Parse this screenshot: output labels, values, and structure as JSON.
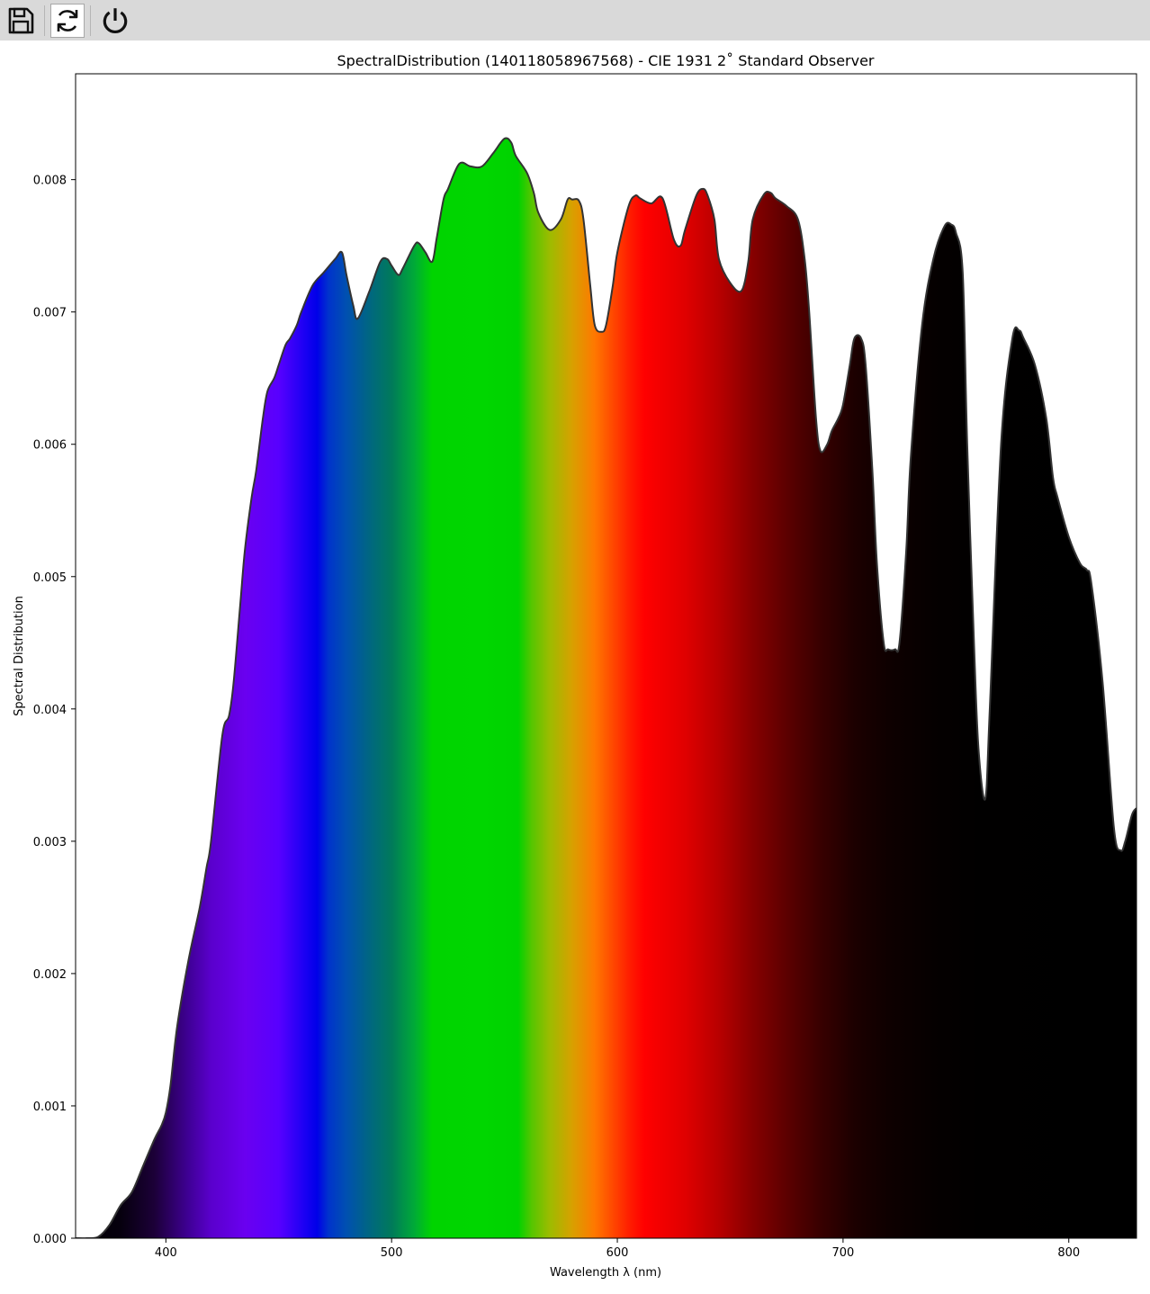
{
  "toolbar": {
    "buttons": [
      {
        "name": "save",
        "icon": "save-icon",
        "active": false
      },
      {
        "name": "refresh",
        "icon": "refresh-icon",
        "active": true
      },
      {
        "name": "power",
        "icon": "power-icon",
        "active": false
      }
    ]
  },
  "chart_data": {
    "type": "area",
    "title": "SpectralDistribution (140118058967568) - CIE 1931 2$^\\circ$ Standard Observer",
    "title_display": "SpectralDistribution (140118058967568) - CIE 1931 2˚ Standard Observer",
    "xlabel": "Wavelength λ (nm)",
    "ylabel": "Spectral Distribution",
    "xlim": [
      360,
      830
    ],
    "ylim": [
      0,
      0.0088
    ],
    "xticks": [
      400,
      500,
      600,
      700,
      800
    ],
    "xtick_labels": [
      "400",
      "500",
      "600",
      "700",
      "800"
    ],
    "yticks": [
      0,
      0.001,
      0.002,
      0.003,
      0.004,
      0.005,
      0.006,
      0.007,
      0.008
    ],
    "ytick_labels": [
      "0.000",
      "0.001",
      "0.002",
      "0.003",
      "0.004",
      "0.005",
      "0.006",
      "0.007",
      "0.008"
    ],
    "grid": false,
    "fill": "visible-spectrum colors by wavelength",
    "line_color": "#333333",
    "series": [
      {
        "x": [
          360,
          365,
          370,
          375,
          380,
          385,
          390,
          395,
          398,
          400,
          402,
          405,
          410,
          415,
          418,
          420,
          425,
          428,
          430,
          433,
          435,
          438,
          440,
          443,
          445,
          448,
          450,
          453,
          455,
          458,
          460,
          465,
          470,
          475,
          478,
          480,
          483,
          485,
          490,
          495,
          498,
          500,
          503,
          505,
          510,
          512,
          515,
          518,
          520,
          523,
          525,
          530,
          535,
          540,
          545,
          550,
          553,
          555,
          560,
          563,
          565,
          570,
          575,
          578,
          580,
          583,
          585,
          588,
          590,
          593,
          595,
          598,
          600,
          605,
          608,
          610,
          615,
          620,
          625,
          628,
          630,
          635,
          638,
          640,
          643,
          645,
          650,
          655,
          658,
          660,
          665,
          668,
          670,
          675,
          680,
          683,
          685,
          688,
          690,
          693,
          695,
          698,
          700,
          703,
          705,
          708,
          710,
          713,
          715,
          718,
          720,
          723,
          725,
          728,
          730,
          735,
          740,
          745,
          748,
          750,
          753,
          755,
          758,
          760,
          763,
          765,
          770,
          775,
          778,
          780,
          785,
          790,
          793,
          795,
          800,
          805,
          808,
          810,
          815,
          820,
          823,
          825,
          828,
          830
        ],
        "y": [
          0.0,
          0.0,
          1e-05,
          0.0001,
          0.00025,
          0.00035,
          0.00055,
          0.00075,
          0.00085,
          0.00095,
          0.00115,
          0.0016,
          0.0021,
          0.0025,
          0.0028,
          0.003,
          0.0038,
          0.00395,
          0.0042,
          0.0048,
          0.0052,
          0.0056,
          0.0058,
          0.0062,
          0.0064,
          0.0065,
          0.0066,
          0.00675,
          0.0068,
          0.0069,
          0.007,
          0.0072,
          0.0073,
          0.0074,
          0.00745,
          0.00728,
          0.00705,
          0.00695,
          0.00715,
          0.00738,
          0.0074,
          0.00735,
          0.00728,
          0.00733,
          0.0075,
          0.00752,
          0.00745,
          0.00738,
          0.00756,
          0.00785,
          0.00793,
          0.00812,
          0.0081,
          0.0081,
          0.0082,
          0.00831,
          0.00828,
          0.00818,
          0.00805,
          0.0079,
          0.00775,
          0.00762,
          0.0077,
          0.00785,
          0.00785,
          0.00784,
          0.0077,
          0.0072,
          0.0069,
          0.00685,
          0.0069,
          0.0072,
          0.00745,
          0.0078,
          0.00788,
          0.00786,
          0.00782,
          0.00786,
          0.00755,
          0.0075,
          0.00762,
          0.00788,
          0.00793,
          0.00788,
          0.0077,
          0.0074,
          0.00722,
          0.00716,
          0.00738,
          0.0077,
          0.00789,
          0.0079,
          0.00786,
          0.0078,
          0.0077,
          0.0074,
          0.007,
          0.0062,
          0.00595,
          0.006,
          0.0061,
          0.0062,
          0.0063,
          0.0066,
          0.0068,
          0.0068,
          0.0066,
          0.0058,
          0.0051,
          0.0045,
          0.00445,
          0.00445,
          0.0045,
          0.0052,
          0.0059,
          0.0069,
          0.0074,
          0.00765,
          0.00766,
          0.0076,
          0.0073,
          0.006,
          0.0045,
          0.0037,
          0.00332,
          0.004,
          0.006,
          0.0068,
          0.00686,
          0.0068,
          0.0066,
          0.0062,
          0.00575,
          0.0056,
          0.0053,
          0.0051,
          0.00505,
          0.00495,
          0.0042,
          0.0031,
          0.00293,
          0.003,
          0.0032,
          0.00325
        ]
      }
    ]
  }
}
